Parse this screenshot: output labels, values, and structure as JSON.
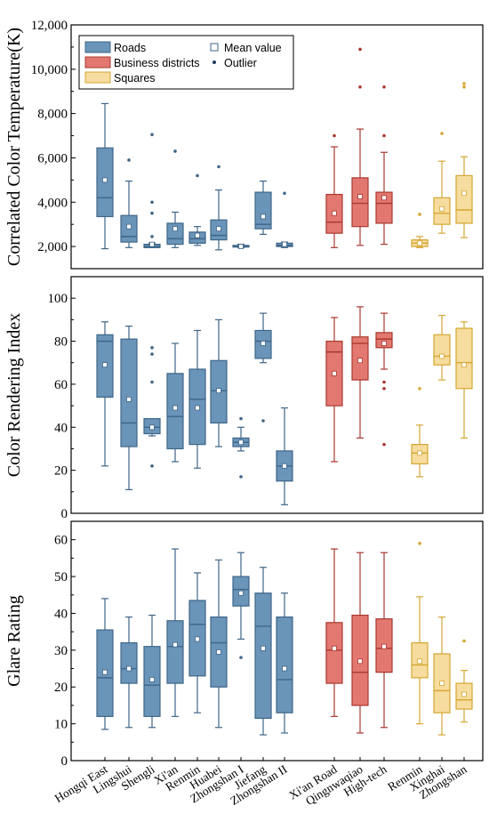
{
  "colors": {
    "Roads": {
      "fill": "#6a94b8",
      "edge": "#3f6688"
    },
    "Business districts": {
      "fill": "#e27870",
      "edge": "#a8382e"
    },
    "Squares": {
      "fill": "#f6dc9e",
      "edge": "#d4a633"
    },
    "mean_marker": "#ffffff",
    "outlier_edge": "#1f3c5a"
  },
  "legend": {
    "entries": [
      {
        "label": "Roads",
        "group": "Roads"
      },
      {
        "label": "Business districts",
        "group": "Business districts"
      },
      {
        "label": "Squares",
        "group": "Squares"
      }
    ],
    "mean_label": "Mean value",
    "outlier_label": "Outlier",
    "placement": "top-left of first panel"
  },
  "x_categories": [
    {
      "label": "Hongqi East",
      "group": "Roads"
    },
    {
      "label": "Lingshui",
      "group": "Roads"
    },
    {
      "label": "Shengli",
      "group": "Roads"
    },
    {
      "label": "Xi'an",
      "group": "Roads"
    },
    {
      "label": "Renmin",
      "group": "Roads"
    },
    {
      "label": "Huabei",
      "group": "Roads"
    },
    {
      "label": "Zhongshan I",
      "group": "Roads"
    },
    {
      "label": "Jiefang",
      "group": "Roads"
    },
    {
      "label": "Zhongshan II",
      "group": "Roads"
    },
    {
      "label": "Xi'an Road",
      "group": "Business districts"
    },
    {
      "label": "Qingnwaqiao",
      "group": "Business districts"
    },
    {
      "label": "High-tech",
      "group": "Business districts"
    },
    {
      "label": "Renmin",
      "group": "Squares"
    },
    {
      "label": "Xinghai",
      "group": "Squares"
    },
    {
      "label": "Zhongshan",
      "group": "Squares"
    }
  ],
  "chart_data": [
    {
      "type": "box",
      "ylabel": "Correlated Color Temperature(K)",
      "ylim": [
        1000,
        12000
      ],
      "yticks": [
        2000,
        4000,
        6000,
        8000,
        10000,
        12000
      ],
      "ytick_labels": [
        "2,000",
        "4,000",
        "6,000",
        "8,000",
        "10,000",
        "12,000"
      ],
      "grid": false,
      "boxes": [
        {
          "min": 1900,
          "q1": 3350,
          "median": 4200,
          "q3": 6450,
          "max": 8450,
          "mean": 5000,
          "outliers": []
        },
        {
          "min": 1950,
          "q1": 2200,
          "median": 2450,
          "q3": 3400,
          "max": 4950,
          "mean": 2900,
          "outliers": [
            5900
          ]
        },
        {
          "min": 1950,
          "q1": 1950,
          "median": 2000,
          "q3": 2100,
          "max": 2150,
          "mean": 2100,
          "outliers": [
            2450,
            3500,
            4000,
            7050
          ]
        },
        {
          "min": 1950,
          "q1": 2100,
          "median": 2350,
          "q3": 3050,
          "max": 3550,
          "mean": 2800,
          "outliers": [
            6300
          ]
        },
        {
          "min": 2050,
          "q1": 2150,
          "median": 2350,
          "q3": 2650,
          "max": 2900,
          "mean": 2500,
          "outliers": [
            5200
          ]
        },
        {
          "min": 1850,
          "q1": 2300,
          "median": 2500,
          "q3": 3200,
          "max": 4550,
          "mean": 2800,
          "outliers": [
            5600
          ]
        },
        {
          "min": 1950,
          "q1": 1975,
          "median": 2000,
          "q3": 2050,
          "max": 2100,
          "mean": 2000,
          "outliers": []
        },
        {
          "min": 2550,
          "q1": 2800,
          "median": 3000,
          "q3": 4450,
          "max": 4950,
          "mean": 3350,
          "outliers": []
        },
        {
          "min": 1950,
          "q1": 2000,
          "median": 2050,
          "q3": 2150,
          "max": 2200,
          "mean": 2100,
          "outliers": [
            4400
          ]
        },
        {
          "min": 1950,
          "q1": 2600,
          "median": 3100,
          "q3": 4350,
          "max": 6500,
          "mean": 3500,
          "outliers": [
            7000
          ]
        },
        {
          "min": 2050,
          "q1": 2900,
          "median": 3950,
          "q3": 5100,
          "max": 7300,
          "mean": 4250,
          "outliers": [
            9200,
            10900
          ]
        },
        {
          "min": 2100,
          "q1": 3050,
          "median": 3950,
          "q3": 4450,
          "max": 6250,
          "mean": 4200,
          "outliers": [
            7000,
            9200
          ]
        },
        {
          "min": 1950,
          "q1": 2000,
          "median": 2150,
          "q3": 2300,
          "max": 2450,
          "mean": 2150,
          "outliers": [
            3450
          ]
        },
        {
          "min": 2600,
          "q1": 3000,
          "median": 3500,
          "q3": 4200,
          "max": 5850,
          "mean": 3700,
          "outliers": [
            7100
          ]
        },
        {
          "min": 2400,
          "q1": 3050,
          "median": 3650,
          "q3": 5200,
          "max": 6050,
          "mean": 4400,
          "outliers": [
            9200,
            9350
          ]
        }
      ]
    },
    {
      "type": "box",
      "ylabel": "Color Rendering Index",
      "ylim": [
        0,
        110
      ],
      "yticks": [
        0,
        20,
        40,
        60,
        80,
        100
      ],
      "ytick_labels": [
        "0",
        "20",
        "40",
        "60",
        "80",
        "100"
      ],
      "grid": false,
      "boxes": [
        {
          "min": 22,
          "q1": 54,
          "median": 80,
          "q3": 83,
          "max": 89,
          "mean": 69,
          "outliers": []
        },
        {
          "min": 11,
          "q1": 31,
          "median": 42,
          "q3": 81,
          "max": 87,
          "mean": 53,
          "outliers": []
        },
        {
          "min": 36,
          "q1": 37,
          "median": 40,
          "q3": 44,
          "max": 44,
          "mean": 40,
          "outliers": [
            22,
            61,
            74,
            77
          ]
        },
        {
          "min": 24,
          "q1": 30,
          "median": 45,
          "q3": 65,
          "max": 79,
          "mean": 49,
          "outliers": []
        },
        {
          "min": 21,
          "q1": 32,
          "median": 53,
          "q3": 67,
          "max": 85,
          "mean": 49,
          "outliers": []
        },
        {
          "min": 31,
          "q1": 42,
          "median": 57,
          "q3": 71,
          "max": 90,
          "mean": 57,
          "outliers": []
        },
        {
          "min": 29,
          "q1": 31,
          "median": 33,
          "q3": 35,
          "max": 40,
          "mean": 33,
          "outliers": [
            17,
            44
          ]
        },
        {
          "min": 70,
          "q1": 72,
          "median": 80,
          "q3": 85,
          "max": 93,
          "mean": 79,
          "outliers": [
            43
          ]
        },
        {
          "min": 4,
          "q1": 15,
          "median": 22,
          "q3": 29,
          "max": 49,
          "mean": 22,
          "outliers": []
        },
        {
          "min": 24,
          "q1": 50,
          "median": 75,
          "q3": 80,
          "max": 91,
          "mean": 65,
          "outliers": []
        },
        {
          "min": 35,
          "q1": 62,
          "median": 79,
          "q3": 82,
          "max": 96,
          "mean": 71,
          "outliers": []
        },
        {
          "min": 67,
          "q1": 77,
          "median": 81,
          "q3": 84,
          "max": 93,
          "mean": 79,
          "outliers": [
            32,
            58,
            61
          ]
        },
        {
          "min": 17,
          "q1": 23,
          "median": 28,
          "q3": 32,
          "max": 41,
          "mean": 28,
          "outliers": [
            58
          ]
        },
        {
          "min": 62,
          "q1": 69,
          "median": 73,
          "q3": 83,
          "max": 92,
          "mean": 73,
          "outliers": []
        },
        {
          "min": 35,
          "q1": 58,
          "median": 70,
          "q3": 86,
          "max": 89,
          "mean": 69,
          "outliers": []
        }
      ]
    },
    {
      "type": "box",
      "ylabel": "Glare Rating",
      "ylim": [
        0,
        65
      ],
      "yticks": [
        0,
        10,
        20,
        30,
        40,
        50,
        60
      ],
      "ytick_labels": [
        "0",
        "10",
        "20",
        "30",
        "40",
        "50",
        "60"
      ],
      "grid": false,
      "boxes": [
        {
          "min": 8.5,
          "q1": 12,
          "median": 22.5,
          "q3": 35.5,
          "max": 44,
          "mean": 24,
          "outliers": []
        },
        {
          "min": 9,
          "q1": 21,
          "median": 25,
          "q3": 32,
          "max": 39,
          "mean": 25,
          "outliers": []
        },
        {
          "min": 9,
          "q1": 12,
          "median": 20.5,
          "q3": 31,
          "max": 39.5,
          "mean": 22,
          "outliers": []
        },
        {
          "min": 12,
          "q1": 21,
          "median": 31,
          "q3": 38,
          "max": 57.5,
          "mean": 31.5,
          "outliers": []
        },
        {
          "min": 13,
          "q1": 23,
          "median": 37,
          "q3": 43.5,
          "max": 51,
          "mean": 33,
          "outliers": []
        },
        {
          "min": 9,
          "q1": 20,
          "median": 32,
          "q3": 39,
          "max": 54.5,
          "mean": 29.5,
          "outliers": []
        },
        {
          "min": 33,
          "q1": 42,
          "median": 46.5,
          "q3": 50,
          "max": 56.5,
          "mean": 45.5,
          "outliers": [
            28
          ]
        },
        {
          "min": 7,
          "q1": 11.5,
          "median": 36.5,
          "q3": 45.5,
          "max": 52.5,
          "mean": 30.5,
          "outliers": []
        },
        {
          "min": 7.5,
          "q1": 13,
          "median": 22,
          "q3": 39,
          "max": 45.5,
          "mean": 25,
          "outliers": []
        },
        {
          "min": 12,
          "q1": 21,
          "median": 30,
          "q3": 37.5,
          "max": 57.5,
          "mean": 30.5,
          "outliers": []
        },
        {
          "min": 7.5,
          "q1": 15,
          "median": 24,
          "q3": 39.5,
          "max": 56.5,
          "mean": 27,
          "outliers": []
        },
        {
          "min": 9,
          "q1": 24,
          "median": 30.5,
          "q3": 38.5,
          "max": 56.5,
          "mean": 31,
          "outliers": []
        },
        {
          "min": 10,
          "q1": 22.5,
          "median": 26,
          "q3": 32,
          "max": 44.5,
          "mean": 27,
          "outliers": [
            59
          ]
        },
        {
          "min": 7,
          "q1": 13,
          "median": 19,
          "q3": 29,
          "max": 39,
          "mean": 21,
          "outliers": []
        },
        {
          "min": 10.5,
          "q1": 14,
          "median": 16.5,
          "q3": 21,
          "max": 24.5,
          "mean": 18,
          "outliers": [
            32.5
          ]
        }
      ]
    }
  ]
}
